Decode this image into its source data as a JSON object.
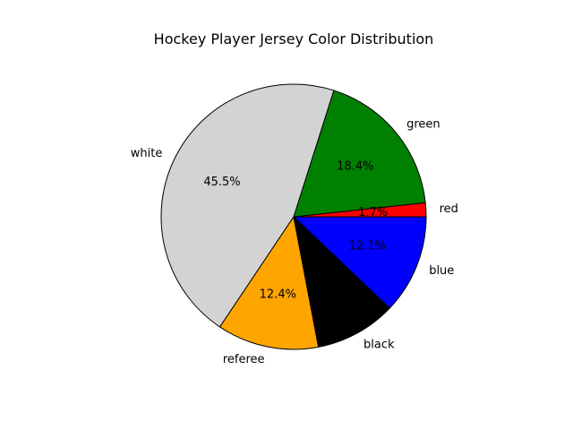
{
  "chart_data": {
    "type": "pie",
    "title": "Hockey Player Jersey Color Distribution",
    "start_angle_deg": 0,
    "direction": "counterclockwise",
    "slices": [
      {
        "label": "red",
        "value": 1.7,
        "pct_label": "1.7%",
        "color": "#ff0000"
      },
      {
        "label": "green",
        "value": 18.4,
        "pct_label": "18.4%",
        "color": "#008000"
      },
      {
        "label": "white",
        "value": 45.5,
        "pct_label": "45.5%",
        "color": "#d3d3d3"
      },
      {
        "label": "referee",
        "value": 12.4,
        "pct_label": "12.4%",
        "color": "#ffa500"
      },
      {
        "label": "black",
        "value": 9.9,
        "pct_label": "",
        "color": "#000000"
      },
      {
        "label": "blue",
        "value": 12.1,
        "pct_label": "12.1%",
        "color": "#0000ff"
      }
    ],
    "edge_color": "#000000"
  }
}
